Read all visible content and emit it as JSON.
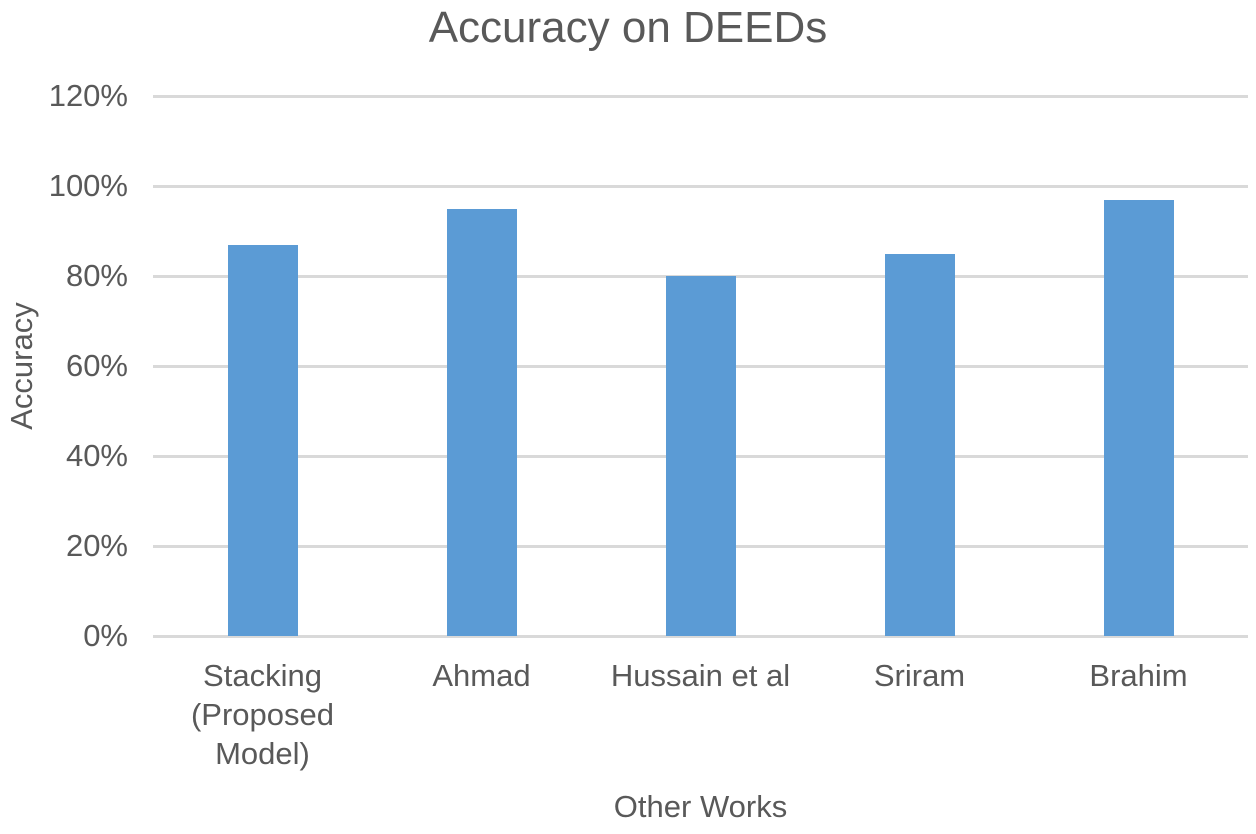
{
  "chart_data": {
    "type": "bar",
    "title": "Accuracy on DEEDs",
    "xlabel": "Other Works",
    "ylabel": "Accuracy",
    "categories": [
      "Stacking (Proposed Model)",
      "Ahmad",
      "Hussain et al",
      "Sriram",
      "Brahim"
    ],
    "category_display_lines": [
      [
        "Stacking",
        "(Proposed",
        "Model)"
      ],
      [
        "Ahmad"
      ],
      [
        "Hussain et al"
      ],
      [
        "Sriram"
      ],
      [
        "Brahim"
      ]
    ],
    "values": [
      87,
      95,
      80,
      85,
      97
    ],
    "value_unit": "%",
    "y_ticks": [
      "0%",
      "20%",
      "40%",
      "60%",
      "80%",
      "100%",
      "120%"
    ],
    "ylim": [
      0,
      120
    ],
    "grid": "horizontal",
    "legend": "none",
    "colors": {
      "bar": "#5B9BD5",
      "gridline": "#D9D9D9",
      "text": "#595959",
      "background": "#FFFFFF"
    }
  }
}
